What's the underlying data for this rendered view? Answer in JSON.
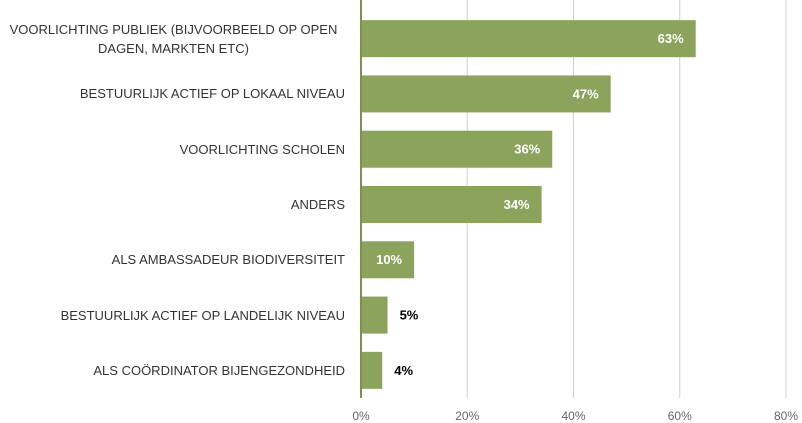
{
  "chart_data": {
    "type": "bar",
    "orientation": "horizontal",
    "categories": [
      "VOORLICHTING PUBLIEK (BIJVOORBEELD OP OPEN DAGEN, MARKTEN ETC)",
      "BESTUURLIJK ACTIEF OP LOKAAL NIVEAU",
      "VOORLICHTING SCHOLEN",
      "ANDERS",
      "ALS AMBASSADEUR BIODIVERSITEIT",
      "BESTUURLIJK ACTIEF OP LANDELIJK NIVEAU",
      "ALS COÖRDINATOR BIJENGEZONDHEID"
    ],
    "values": [
      63,
      47,
      36,
      34,
      10,
      5,
      4
    ],
    "value_labels": [
      "63%",
      "47%",
      "36%",
      "34%",
      "10%",
      "5%",
      "4%"
    ],
    "color": "#8ba35a",
    "xlim": [
      0,
      80
    ],
    "xticks": [
      {
        "value": 0,
        "label": "0%"
      },
      {
        "value": 20,
        "label": "20%"
      },
      {
        "value": 40,
        "label": "40%"
      },
      {
        "value": 60,
        "label": "60%"
      },
      {
        "value": 80,
        "label": "80%"
      }
    ],
    "grid": true
  }
}
